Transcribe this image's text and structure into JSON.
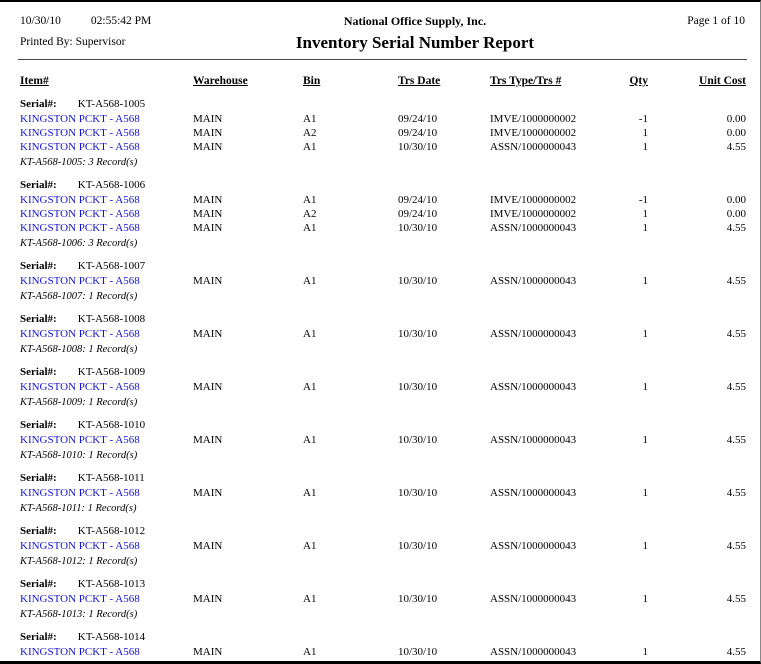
{
  "page": {
    "date": "10/30/10",
    "time": "02:55:42 PM",
    "printed_by": "Printed By: Supervisor",
    "company": "National Office Supply, Inc.",
    "title": "Inventory Serial Number Report",
    "page_label": "Page 1 of 10"
  },
  "colors": {
    "link_blue": "#1515d6",
    "text": "#000000"
  },
  "table": {
    "columns": [
      "Item#",
      "Warehouse",
      "Bin",
      "Trs Date",
      "Trs Type/Trs #",
      "Qty",
      "Unit Cost"
    ],
    "serial_label": "Serial#:",
    "groups": [
      {
        "serial": "KT-A568-1005",
        "rows": [
          {
            "item": "KINGSTON PCKT - A568",
            "warehouse": "MAIN",
            "bin": "A1",
            "trs_date": "09/24/10",
            "trs_type": "IMVE/1000000002",
            "qty": "-1",
            "unit_cost": "0.00"
          },
          {
            "item": "KINGSTON PCKT - A568",
            "warehouse": "MAIN",
            "bin": "A2",
            "trs_date": "09/24/10",
            "trs_type": "IMVE/1000000002",
            "qty": "1",
            "unit_cost": "0.00"
          },
          {
            "item": "KINGSTON PCKT - A568",
            "warehouse": "MAIN",
            "bin": "A1",
            "trs_date": "10/30/10",
            "trs_type": "ASSN/1000000043",
            "qty": "1",
            "unit_cost": "4.55"
          }
        ],
        "footer": "KT-A568-1005: 3 Record(s)"
      },
      {
        "serial": "KT-A568-1006",
        "rows": [
          {
            "item": "KINGSTON PCKT - A568",
            "warehouse": "MAIN",
            "bin": "A1",
            "trs_date": "09/24/10",
            "trs_type": "IMVE/1000000002",
            "qty": "-1",
            "unit_cost": "0.00"
          },
          {
            "item": "KINGSTON PCKT - A568",
            "warehouse": "MAIN",
            "bin": "A2",
            "trs_date": "09/24/10",
            "trs_type": "IMVE/1000000002",
            "qty": "1",
            "unit_cost": "0.00"
          },
          {
            "item": "KINGSTON PCKT - A568",
            "warehouse": "MAIN",
            "bin": "A1",
            "trs_date": "10/30/10",
            "trs_type": "ASSN/1000000043",
            "qty": "1",
            "unit_cost": "4.55"
          }
        ],
        "footer": "KT-A568-1006: 3 Record(s)"
      },
      {
        "serial": "KT-A568-1007",
        "rows": [
          {
            "item": "KINGSTON PCKT - A568",
            "warehouse": "MAIN",
            "bin": "A1",
            "trs_date": "10/30/10",
            "trs_type": "ASSN/1000000043",
            "qty": "1",
            "unit_cost": "4.55"
          }
        ],
        "footer": "KT-A568-1007: 1 Record(s)"
      },
      {
        "serial": "KT-A568-1008",
        "rows": [
          {
            "item": "KINGSTON PCKT - A568",
            "warehouse": "MAIN",
            "bin": "A1",
            "trs_date": "10/30/10",
            "trs_type": "ASSN/1000000043",
            "qty": "1",
            "unit_cost": "4.55"
          }
        ],
        "footer": "KT-A568-1008: 1 Record(s)"
      },
      {
        "serial": "KT-A568-1009",
        "rows": [
          {
            "item": "KINGSTON PCKT - A568",
            "warehouse": "MAIN",
            "bin": "A1",
            "trs_date": "10/30/10",
            "trs_type": "ASSN/1000000043",
            "qty": "1",
            "unit_cost": "4.55"
          }
        ],
        "footer": "KT-A568-1009: 1 Record(s)"
      },
      {
        "serial": "KT-A568-1010",
        "rows": [
          {
            "item": "KINGSTON PCKT - A568",
            "warehouse": "MAIN",
            "bin": "A1",
            "trs_date": "10/30/10",
            "trs_type": "ASSN/1000000043",
            "qty": "1",
            "unit_cost": "4.55"
          }
        ],
        "footer": "KT-A568-1010: 1 Record(s)"
      },
      {
        "serial": "KT-A568-1011",
        "rows": [
          {
            "item": "KINGSTON PCKT - A568",
            "warehouse": "MAIN",
            "bin": "A1",
            "trs_date": "10/30/10",
            "trs_type": "ASSN/1000000043",
            "qty": "1",
            "unit_cost": "4.55"
          }
        ],
        "footer": "KT-A568-1011: 1 Record(s)"
      },
      {
        "serial": "KT-A568-1012",
        "rows": [
          {
            "item": "KINGSTON PCKT - A568",
            "warehouse": "MAIN",
            "bin": "A1",
            "trs_date": "10/30/10",
            "trs_type": "ASSN/1000000043",
            "qty": "1",
            "unit_cost": "4.55"
          }
        ],
        "footer": "KT-A568-1012: 1 Record(s)"
      },
      {
        "serial": "KT-A568-1013",
        "rows": [
          {
            "item": "KINGSTON PCKT - A568",
            "warehouse": "MAIN",
            "bin": "A1",
            "trs_date": "10/30/10",
            "trs_type": "ASSN/1000000043",
            "qty": "1",
            "unit_cost": "4.55"
          }
        ],
        "footer": "KT-A568-1013: 1 Record(s)"
      },
      {
        "serial": "KT-A568-1014",
        "rows": [
          {
            "item": "KINGSTON PCKT - A568",
            "warehouse": "MAIN",
            "bin": "A1",
            "trs_date": "10/30/10",
            "trs_type": "ASSN/1000000043",
            "qty": "1",
            "unit_cost": "4.55"
          }
        ]
      }
    ]
  }
}
